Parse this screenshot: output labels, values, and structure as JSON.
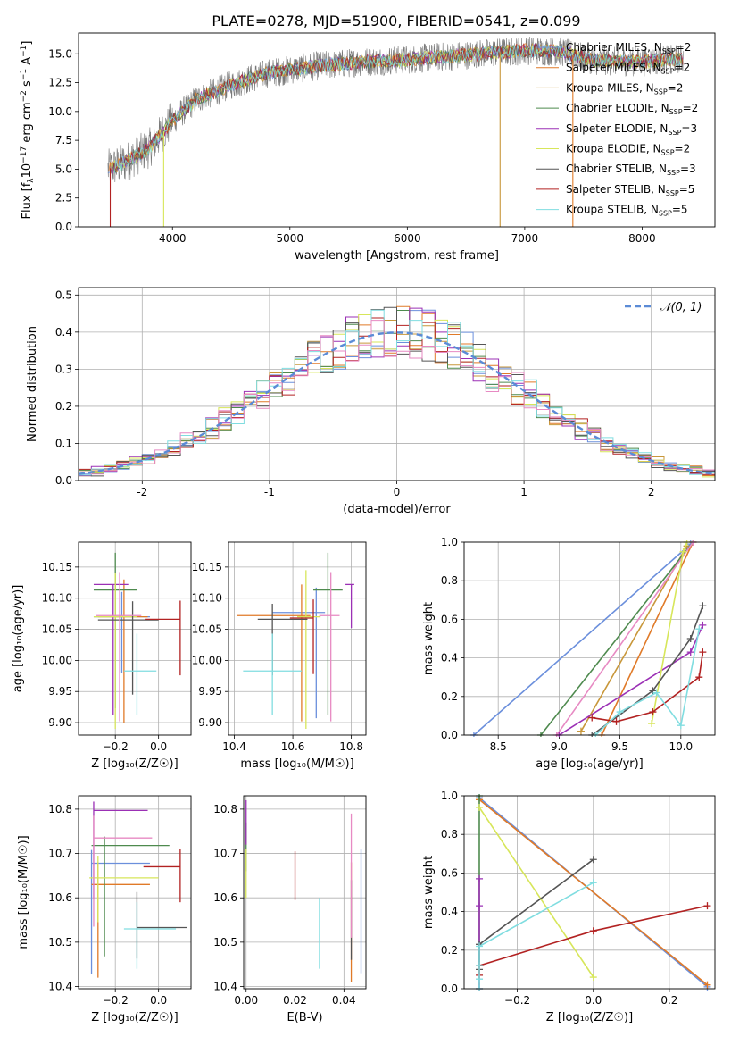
{
  "figure_title": "PLATE=0278, MJD=51900, FIBERID=0541, z=0.099",
  "series_colors": [
    "#6b8fdc",
    "#e07a28",
    "#c8973a",
    "#4e8a4e",
    "#9b30b5",
    "#d7e65a",
    "#555555",
    "#b22222",
    "#80dde0",
    "#e78ac3"
  ],
  "chart_data": [
    {
      "id": "spectrum",
      "type": "line",
      "title": "PLATE=0278, MJD=51900, FIBERID=0541, z=0.099",
      "xlabel": "wavelength [Angstrom, rest frame]",
      "ylabel_parts": [
        "Flux [f",
        "λ",
        "10",
        "−17",
        " erg cm",
        "−2",
        " s",
        "−1",
        " A",
        "−1",
        "]"
      ],
      "xlim": [
        3200,
        8620
      ],
      "ylim": [
        0,
        16.8
      ],
      "xticks": [
        4000,
        5000,
        6000,
        7000,
        8000
      ],
      "yticks": [
        0.0,
        2.5,
        5.0,
        7.5,
        10.0,
        12.5,
        15.0
      ],
      "ytick_labels": [
        "0.0",
        "2.5",
        "5.0",
        "7.5",
        "10.0",
        "12.5",
        "15.0"
      ],
      "continuum": {
        "x": [
          3450,
          3600,
          3800,
          4000,
          4200,
          4500,
          4800,
          5200,
          5600,
          6000,
          6500,
          7000,
          7300,
          7600,
          8000,
          8350
        ],
        "y": [
          5.0,
          5.6,
          6.8,
          9.2,
          11.0,
          12.3,
          13.3,
          13.9,
          14.3,
          14.5,
          14.9,
          15.3,
          15.2,
          14.4,
          14.3,
          14.6
        ]
      },
      "legend": [
        {
          "label": "Chabrier MILES, N",
          "sub": "SSP",
          "tail": "=2",
          "color": "#6b8fdc"
        },
        {
          "label": "Salpeter MILES, N",
          "sub": "SSP",
          "tail": "=2",
          "color": "#e07a28"
        },
        {
          "label": "Kroupa MILES, N",
          "sub": "SSP",
          "tail": "=2",
          "color": "#c8973a"
        },
        {
          "label": "Chabrier ELODIE, N",
          "sub": "SSP",
          "tail": "=2",
          "color": "#4e8a4e"
        },
        {
          "label": "Salpeter ELODIE, N",
          "sub": "SSP",
          "tail": "=3",
          "color": "#9b30b5"
        },
        {
          "label": "Kroupa ELODIE, N",
          "sub": "SSP",
          "tail": "=2",
          "color": "#d7e65a"
        },
        {
          "label": "Chabrier STELIB, N",
          "sub": "SSP",
          "tail": "=3",
          "color": "#555555"
        },
        {
          "label": "Salpeter STELIB, N",
          "sub": "SSP",
          "tail": "=5",
          "color": "#b22222"
        },
        {
          "label": "Kroupa STELIB, N",
          "sub": "SSP",
          "tail": "=5",
          "color": "#80dde0"
        }
      ]
    },
    {
      "id": "residuals",
      "type": "histogram",
      "xlabel": "(data-model)/error",
      "ylabel": "Normed distribution",
      "xlim": [
        -2.5,
        2.5
      ],
      "ylim": [
        0,
        0.52
      ],
      "xticks": [
        -2,
        -1,
        0,
        1,
        2
      ],
      "yticks": [
        0.0,
        0.1,
        0.2,
        0.3,
        0.4,
        0.5
      ],
      "ytick_labels": [
        "0.0",
        "0.1",
        "0.2",
        "0.3",
        "0.4",
        "0.5"
      ],
      "grid": true,
      "bin_width": 0.1,
      "legend_label": "𝒩(0, 1)",
      "legend_color": "#5b8bd6"
    },
    {
      "id": "age_vs_Z",
      "type": "errorbar",
      "xlabel": "Z [log₁₀(Z/Z☉)]",
      "ylabel": "age  [log₁₀(age/yr)]",
      "xlim": [
        -0.37,
        0.15
      ],
      "ylim": [
        9.88,
        10.19
      ],
      "xticks": [
        -0.2,
        0.0
      ],
      "xtick_labels": [
        "−0.2",
        "0.0"
      ],
      "yticks": [
        9.9,
        9.95,
        10.0,
        10.05,
        10.1,
        10.15
      ],
      "ytick_labels": [
        "9.90",
        "9.95",
        "10.00",
        "10.05",
        "10.10",
        "10.15"
      ],
      "points": [
        {
          "x": -0.17,
          "y": 10.07,
          "xerr": [
            0.13,
            0.13
          ],
          "yerr": [
            0.09,
            0.04
          ],
          "color": "#6b8fdc"
        },
        {
          "x": -0.16,
          "y": 10.07,
          "xerr": [
            0.12,
            0.11
          ],
          "yerr": [
            0.17,
            0.06
          ],
          "color": "#e07a28"
        },
        {
          "x": -0.2,
          "y": 10.113,
          "xerr": [
            0.1,
            0.1
          ],
          "yerr": [
            0.19,
            0.06
          ],
          "color": "#4e8a4e"
        },
        {
          "x": -0.21,
          "y": 10.122,
          "xerr": [
            0.09,
            0.07
          ],
          "yerr": [
            0.21,
            0.0
          ],
          "color": "#9b30b5"
        },
        {
          "x": -0.2,
          "y": 10.07,
          "xerr": [
            0.1,
            0.1
          ],
          "yerr": [
            0.18,
            0.07
          ],
          "color": "#d7e65a"
        },
        {
          "x": -0.12,
          "y": 10.065,
          "xerr": [
            0.16,
            0.12
          ],
          "yerr": [
            0.12,
            0.03
          ],
          "color": "#555555"
        },
        {
          "x": 0.1,
          "y": 10.066,
          "xerr": [
            0.16,
            0.0
          ],
          "yerr": [
            0.09,
            0.03
          ],
          "color": "#b22222"
        },
        {
          "x": -0.1,
          "y": 9.983,
          "xerr": [
            0.06,
            0.09
          ],
          "yerr": [
            0.07,
            0.06
          ],
          "color": "#80dde0"
        },
        {
          "x": -0.18,
          "y": 10.072,
          "xerr": [
            0.11,
            0.1
          ],
          "yerr": [
            0.17,
            0.07
          ],
          "color": "#e78ac3"
        }
      ]
    },
    {
      "id": "age_vs_mass",
      "type": "errorbar",
      "xlabel": "mass [log₁₀(M/M☉)]",
      "ylabel": "",
      "xlim": [
        10.38,
        10.85
      ],
      "ylim": [
        9.88,
        10.19
      ],
      "xticks": [
        10.4,
        10.6,
        10.8
      ],
      "xtick_labels": [
        "10.4",
        "10.6",
        "10.8"
      ],
      "yticks": [
        9.9,
        9.95,
        10.0,
        10.05,
        10.1,
        10.15
      ],
      "ytick_labels": [
        "9.90",
        "9.95",
        "10.00",
        "10.05",
        "10.10",
        "10.15"
      ],
      "points": [
        {
          "x": 10.68,
          "y": 10.077,
          "xerr": [
            0.15,
            0.03
          ],
          "yerr": [
            0.17,
            0.04
          ],
          "color": "#6b8fdc"
        },
        {
          "x": 10.63,
          "y": 10.072,
          "xerr": [
            0.22,
            0.03
          ],
          "yerr": [
            0.17,
            0.05
          ],
          "color": "#e07a28"
        },
        {
          "x": 10.72,
          "y": 10.113,
          "xerr": [
            0.05,
            0.05
          ],
          "yerr": [
            0.2,
            0.06
          ],
          "color": "#4e8a4e"
        },
        {
          "x": 10.8,
          "y": 10.122,
          "xerr": [
            0.02,
            0.01
          ],
          "yerr": [
            0.07,
            0.0
          ],
          "color": "#9b30b5"
        },
        {
          "x": 10.645,
          "y": 10.07,
          "xerr": [
            0.03,
            0.05
          ],
          "yerr": [
            0.18,
            0.075
          ],
          "color": "#d7e65a"
        },
        {
          "x": 10.53,
          "y": 10.066,
          "xerr": [
            0.05,
            0.12
          ],
          "yerr": [
            0.09,
            0.025
          ],
          "color": "#555555"
        },
        {
          "x": 10.67,
          "y": 10.068,
          "xerr": [
            0.08,
            0.0
          ],
          "yerr": [
            0.09,
            0.03
          ],
          "color": "#b22222"
        },
        {
          "x": 10.53,
          "y": 9.983,
          "xerr": [
            0.1,
            0.1
          ],
          "yerr": [
            0.07,
            0.06
          ],
          "color": "#80dde0"
        },
        {
          "x": 10.73,
          "y": 10.072,
          "xerr": [
            0.04,
            0.03
          ],
          "yerr": [
            0.17,
            0.07
          ],
          "color": "#e78ac3"
        }
      ]
    },
    {
      "id": "massweight_vs_age",
      "type": "line",
      "xlabel": "age  [log₁₀(age/yr)]",
      "ylabel": "mass weight",
      "xlim": [
        8.22,
        10.28
      ],
      "ylim": [
        0,
        1.0
      ],
      "xticks": [
        8.5,
        9.0,
        9.5,
        10.0
      ],
      "xtick_labels": [
        "8.5",
        "9.0",
        "9.5",
        "10.0"
      ],
      "yticks": [
        0.0,
        0.2,
        0.4,
        0.6,
        0.8,
        1.0
      ],
      "ytick_labels": [
        "0.0",
        "0.2",
        "0.4",
        "0.6",
        "0.8",
        "1.0"
      ],
      "series": [
        {
          "x": [
            8.3,
            10.08
          ],
          "y": [
            0.0,
            0.99
          ],
          "color": "#6b8fdc"
        },
        {
          "x": [
            9.35,
            10.1
          ],
          "y": [
            0.0,
            1.0
          ],
          "color": "#e07a28"
        },
        {
          "x": [
            9.18,
            10.05
          ],
          "y": [
            0.02,
            0.98
          ],
          "color": "#c8973a"
        },
        {
          "x": [
            8.85,
            10.1
          ],
          "y": [
            0.0,
            1.0
          ],
          "color": "#4e8a4e"
        },
        {
          "x": [
            8.98,
            10.1
          ],
          "y": [
            0.0,
            1.0
          ],
          "color": "#e78ac3"
        },
        {
          "x": [
            9.0,
            10.08,
            10.18
          ],
          "y": [
            0.0,
            0.43,
            0.57
          ],
          "color": "#9b30b5"
        },
        {
          "x": [
            9.76,
            10.02,
            10.05
          ],
          "y": [
            0.06,
            0.95,
            1.0
          ],
          "color": "#d7e65a"
        },
        {
          "x": [
            9.27,
            9.77,
            10.08,
            10.18
          ],
          "y": [
            0.0,
            0.23,
            0.5,
            0.67
          ],
          "color": "#555555"
        },
        {
          "x": [
            9.27,
            9.47,
            9.77,
            10.15,
            10.18
          ],
          "y": [
            0.09,
            0.07,
            0.12,
            0.3,
            0.43
          ],
          "color": "#b22222"
        },
        {
          "x": [
            9.3,
            9.5,
            9.8,
            10.0,
            10.15
          ],
          "y": [
            0.0,
            0.12,
            0.22,
            0.05,
            0.55
          ],
          "color": "#80dde0"
        }
      ]
    },
    {
      "id": "mass_vs_Z",
      "type": "errorbar",
      "xlabel": "Z [log₁₀(Z/Z☉)]",
      "ylabel": "mass [log₁₀(M/M☉)]",
      "xlim": [
        -0.37,
        0.15
      ],
      "ylim": [
        10.395,
        10.83
      ],
      "xticks": [
        -0.2,
        0.0
      ],
      "xtick_labels": [
        "−0.2",
        "0.0"
      ],
      "yticks": [
        10.4,
        10.5,
        10.6,
        10.7,
        10.8
      ],
      "ytick_labels": [
        "10.4",
        "10.5",
        "10.6",
        "10.7",
        "10.8"
      ],
      "points": [
        {
          "x": -0.31,
          "y": 10.678,
          "xerr": [
            0.0,
            0.27
          ],
          "yerr": [
            0.25,
            0.03
          ],
          "color": "#6b8fdc"
        },
        {
          "x": -0.28,
          "y": 10.63,
          "xerr": [
            0.03,
            0.24
          ],
          "yerr": [
            0.21,
            0.05
          ],
          "color": "#e07a28"
        },
        {
          "x": -0.25,
          "y": 10.718,
          "xerr": [
            0.06,
            0.3
          ],
          "yerr": [
            0.25,
            0.02
          ],
          "color": "#4e8a4e"
        },
        {
          "x": -0.3,
          "y": 10.797,
          "xerr": [
            0.0,
            0.25
          ],
          "yerr": [
            0.2,
            0.02
          ],
          "color": "#9b30b5"
        },
        {
          "x": -0.28,
          "y": 10.645,
          "xerr": [
            0.04,
            0.28
          ],
          "yerr": [
            0.1,
            0.05
          ],
          "color": "#d7e65a"
        },
        {
          "x": -0.1,
          "y": 10.533,
          "xerr": [
            0.0,
            0.23
          ],
          "yerr": [
            0.07,
            0.08
          ],
          "color": "#555555"
        },
        {
          "x": 0.1,
          "y": 10.67,
          "xerr": [
            0.17,
            0.0
          ],
          "yerr": [
            0.08,
            0.04
          ],
          "color": "#b22222"
        },
        {
          "x": -0.1,
          "y": 10.53,
          "xerr": [
            0.06,
            0.18
          ],
          "yerr": [
            0.09,
            0.06
          ],
          "color": "#80dde0"
        },
        {
          "x": -0.3,
          "y": 10.735,
          "xerr": [
            0.0,
            0.27
          ],
          "yerr": [
            0.2,
            0.05
          ],
          "color": "#e78ac3"
        }
      ]
    },
    {
      "id": "mass_vs_ebv",
      "type": "errorbar",
      "xlabel": "E(B-V)",
      "ylabel": "",
      "xlim": [
        -0.001,
        0.049
      ],
      "ylim": [
        10.395,
        10.83
      ],
      "xticks": [
        0.0,
        0.02,
        0.04
      ],
      "xtick_labels": [
        "0.00",
        "0.02",
        "0.04"
      ],
      "yticks": [
        10.4,
        10.5,
        10.6,
        10.7,
        10.8
      ],
      "ytick_labels": [
        "10.4",
        "10.5",
        "10.6",
        "10.7",
        "10.8"
      ],
      "points": [
        {
          "x": 0.047,
          "y": 10.6,
          "xerr": [
            0,
            0
          ],
          "yerr": [
            0.17,
            0.11
          ],
          "color": "#6b8fdc"
        },
        {
          "x": 0.043,
          "y": 10.58,
          "xerr": [
            0,
            0
          ],
          "yerr": [
            0.17,
            0.1
          ],
          "color": "#e07a28"
        },
        {
          "x": 0.0,
          "y": 10.72,
          "xerr": [
            0,
            0
          ],
          "yerr": [
            0.06,
            0.05
          ],
          "color": "#4e8a4e"
        },
        {
          "x": 0.0,
          "y": 10.76,
          "xerr": [
            0,
            0
          ],
          "yerr": [
            0.04,
            0.06
          ],
          "color": "#9b30b5"
        },
        {
          "x": 0.0,
          "y": 10.66,
          "xerr": [
            0,
            0
          ],
          "yerr": [
            0.06,
            0.05
          ],
          "color": "#d7e65a"
        },
        {
          "x": 0.043,
          "y": 10.6,
          "xerr": [
            0,
            0
          ],
          "yerr": [
            0.14,
            0.04
          ],
          "color": "#555555"
        },
        {
          "x": 0.02,
          "y": 10.665,
          "xerr": [
            0,
            0
          ],
          "yerr": [
            0.07,
            0.04
          ],
          "color": "#b22222"
        },
        {
          "x": 0.03,
          "y": 10.52,
          "xerr": [
            0,
            0
          ],
          "yerr": [
            0.08,
            0.08
          ],
          "color": "#80dde0"
        },
        {
          "x": 0.043,
          "y": 10.68,
          "xerr": [
            0,
            0
          ],
          "yerr": [
            0.17,
            0.11
          ],
          "color": "#e78ac3"
        }
      ]
    },
    {
      "id": "massweight_vs_Z",
      "type": "line",
      "xlabel": "Z [log₁₀(Z/Z☉)]",
      "ylabel": "mass weight",
      "xlim": [
        -0.34,
        0.32
      ],
      "ylim": [
        0,
        1.0
      ],
      "xticks": [
        -0.2,
        0.0,
        0.2
      ],
      "xtick_labels": [
        "−0.2",
        "0.0",
        "0.2"
      ],
      "yticks": [
        0.0,
        0.2,
        0.4,
        0.6,
        0.8,
        1.0
      ],
      "ytick_labels": [
        "0.0",
        "0.2",
        "0.4",
        "0.6",
        "0.8",
        "1.0"
      ],
      "series": [
        {
          "x": [
            -0.3,
            0.3
          ],
          "y": [
            0.99,
            0.01
          ],
          "color": "#6b8fdc"
        },
        {
          "x": [
            -0.3,
            0.3
          ],
          "y": [
            0.98,
            0.02
          ],
          "color": "#e07a28"
        },
        {
          "x": [
            -0.3,
            -0.3
          ],
          "y": [
            0.0,
            1.0
          ],
          "color": "#4e8a4e"
        },
        {
          "x": [
            -0.3,
            -0.3,
            -0.3
          ],
          "y": [
            0.0,
            0.43,
            0.57
          ],
          "color": "#9b30b5"
        },
        {
          "x": [
            -0.3,
            0.0
          ],
          "y": [
            0.94,
            0.06
          ],
          "color": "#d7e65a"
        },
        {
          "x": [
            -0.3,
            -0.3,
            0.0
          ],
          "y": [
            0.1,
            0.23,
            0.67
          ],
          "color": "#555555"
        },
        {
          "x": [
            -0.3,
            -0.3,
            0.0,
            0.3
          ],
          "y": [
            0.07,
            0.12,
            0.3,
            0.43
          ],
          "color": "#b22222"
        },
        {
          "x": [
            -0.3,
            -0.3,
            -0.3,
            -0.3,
            0.0
          ],
          "y": [
            0.0,
            0.05,
            0.12,
            0.22,
            0.55
          ],
          "color": "#80dde0"
        }
      ]
    }
  ]
}
